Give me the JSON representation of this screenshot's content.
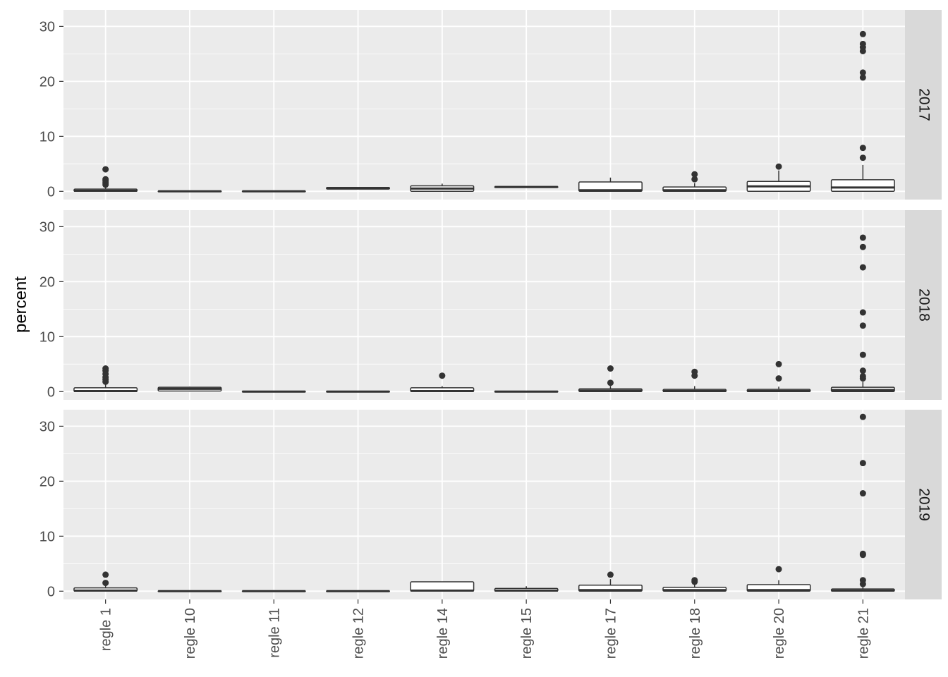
{
  "chart_data": {
    "type": "boxplot",
    "facet": "rows",
    "ylabel": "percent",
    "xlabel": "",
    "ylim": [
      -1.5,
      33
    ],
    "yticks": [
      0,
      10,
      20,
      30
    ],
    "categories": [
      "regle 1",
      "regle 10",
      "regle 11",
      "regle 12",
      "regle 14",
      "regle 15",
      "regle 17",
      "regle 18",
      "regle 20",
      "regle 21"
    ],
    "panels": [
      {
        "label": "2017",
        "boxes": [
          {
            "q1": 0,
            "median": 0.1,
            "q3": 0.4,
            "wlo": 0,
            "whi": 0.9,
            "outliers": [
              1.2,
              1.5,
              1.9,
              2.2,
              4.0
            ]
          },
          {
            "q1": 0,
            "median": 0,
            "q3": 0.05,
            "wlo": 0,
            "whi": 0.05,
            "outliers": []
          },
          {
            "q1": 0,
            "median": 0,
            "q3": 0.05,
            "wlo": 0,
            "whi": 0.05,
            "outliers": []
          },
          {
            "q1": 0.4,
            "median": 0.6,
            "q3": 0.7,
            "wlo": 0.4,
            "whi": 0.7,
            "outliers": []
          },
          {
            "q1": 0,
            "median": 0.5,
            "q3": 1.0,
            "wlo": 0,
            "whi": 1.4,
            "outliers": []
          },
          {
            "q1": 0.7,
            "median": 0.8,
            "q3": 0.85,
            "wlo": 0.7,
            "whi": 0.9,
            "outliers": []
          },
          {
            "q1": 0,
            "median": 0.2,
            "q3": 1.7,
            "wlo": 0,
            "whi": 2.5,
            "outliers": []
          },
          {
            "q1": 0,
            "median": 0.2,
            "q3": 0.8,
            "wlo": 0,
            "whi": 1.5,
            "outliers": [
              2.2,
              3.1
            ]
          },
          {
            "q1": 0,
            "median": 0.9,
            "q3": 1.8,
            "wlo": 0,
            "whi": 3.8,
            "outliers": [
              4.5
            ]
          },
          {
            "q1": 0,
            "median": 0.7,
            "q3": 2.1,
            "wlo": 0,
            "whi": 4.8,
            "outliers": [
              6.1,
              7.9,
              20.7,
              21.6,
              25.5,
              26.2,
              26.8,
              28.6
            ]
          }
        ]
      },
      {
        "label": "2018",
        "boxes": [
          {
            "q1": 0,
            "median": 0.1,
            "q3": 0.7,
            "wlo": 0,
            "whi": 1.5,
            "outliers": [
              1.8,
              2.2,
              2.6,
              3.2,
              3.8,
              4.2
            ]
          },
          {
            "q1": 0.1,
            "median": 0.5,
            "q3": 0.8,
            "wlo": 0.1,
            "whi": 0.9,
            "outliers": []
          },
          {
            "q1": 0,
            "median": 0,
            "q3": 0.05,
            "wlo": 0,
            "whi": 0.05,
            "outliers": []
          },
          {
            "q1": 0,
            "median": 0,
            "q3": 0.05,
            "wlo": 0,
            "whi": 0.05,
            "outliers": []
          },
          {
            "q1": 0,
            "median": 0.1,
            "q3": 0.7,
            "wlo": 0,
            "whi": 1.0,
            "outliers": [
              2.9
            ]
          },
          {
            "q1": 0,
            "median": 0,
            "q3": 0.05,
            "wlo": 0,
            "whi": 0.05,
            "outliers": []
          },
          {
            "q1": 0,
            "median": 0.2,
            "q3": 0.5,
            "wlo": 0,
            "whi": 1.0,
            "outliers": [
              1.6,
              4.2
            ]
          },
          {
            "q1": 0,
            "median": 0.1,
            "q3": 0.4,
            "wlo": 0,
            "whi": 1.0,
            "outliers": [
              2.9,
              3.6
            ]
          },
          {
            "q1": 0,
            "median": 0.1,
            "q3": 0.4,
            "wlo": 0,
            "whi": 0.9,
            "outliers": [
              2.4,
              5.0
            ]
          },
          {
            "q1": 0,
            "median": 0.3,
            "q3": 0.8,
            "wlo": 0,
            "whi": 1.8,
            "outliers": [
              2.4,
              2.8,
              3.8,
              6.7,
              12.0,
              14.4,
              22.6,
              26.3,
              28.0
            ]
          }
        ]
      },
      {
        "label": "2019",
        "boxes": [
          {
            "q1": 0,
            "median": 0.1,
            "q3": 0.6,
            "wlo": 0,
            "whi": 1.2,
            "outliers": [
              1.5,
              3.0
            ]
          },
          {
            "q1": 0,
            "median": 0,
            "q3": 0.05,
            "wlo": 0,
            "whi": 0.05,
            "outliers": []
          },
          {
            "q1": 0,
            "median": 0,
            "q3": 0.05,
            "wlo": 0,
            "whi": 0.05,
            "outliers": []
          },
          {
            "q1": 0,
            "median": 0,
            "q3": 0.05,
            "wlo": 0,
            "whi": 0.05,
            "outliers": []
          },
          {
            "q1": 0,
            "median": 0.1,
            "q3": 1.7,
            "wlo": 0,
            "whi": 1.7,
            "outliers": []
          },
          {
            "q1": 0,
            "median": 0.1,
            "q3": 0.5,
            "wlo": 0,
            "whi": 0.9,
            "outliers": []
          },
          {
            "q1": 0,
            "median": 0.2,
            "q3": 1.1,
            "wlo": 0,
            "whi": 2.2,
            "outliers": [
              3.0
            ]
          },
          {
            "q1": 0,
            "median": 0.2,
            "q3": 0.7,
            "wlo": 0,
            "whi": 1.4,
            "outliers": [
              1.7,
              2.0
            ]
          },
          {
            "q1": 0,
            "median": 0.2,
            "q3": 1.2,
            "wlo": 0,
            "whi": 2.0,
            "outliers": [
              4.0
            ]
          },
          {
            "q1": 0,
            "median": 0.1,
            "q3": 0.4,
            "wlo": 0,
            "whi": 0.9,
            "outliers": [
              1.3,
              2.0,
              6.6,
              6.8,
              17.8,
              23.3,
              31.7
            ]
          }
        ]
      }
    ],
    "colors": {
      "panel_bg": "#ebebeb",
      "grid_major": "#ffffff",
      "strip_bg": "#d9d9d9",
      "box_fill": "#ffffff",
      "box_line": "#333333"
    }
  }
}
